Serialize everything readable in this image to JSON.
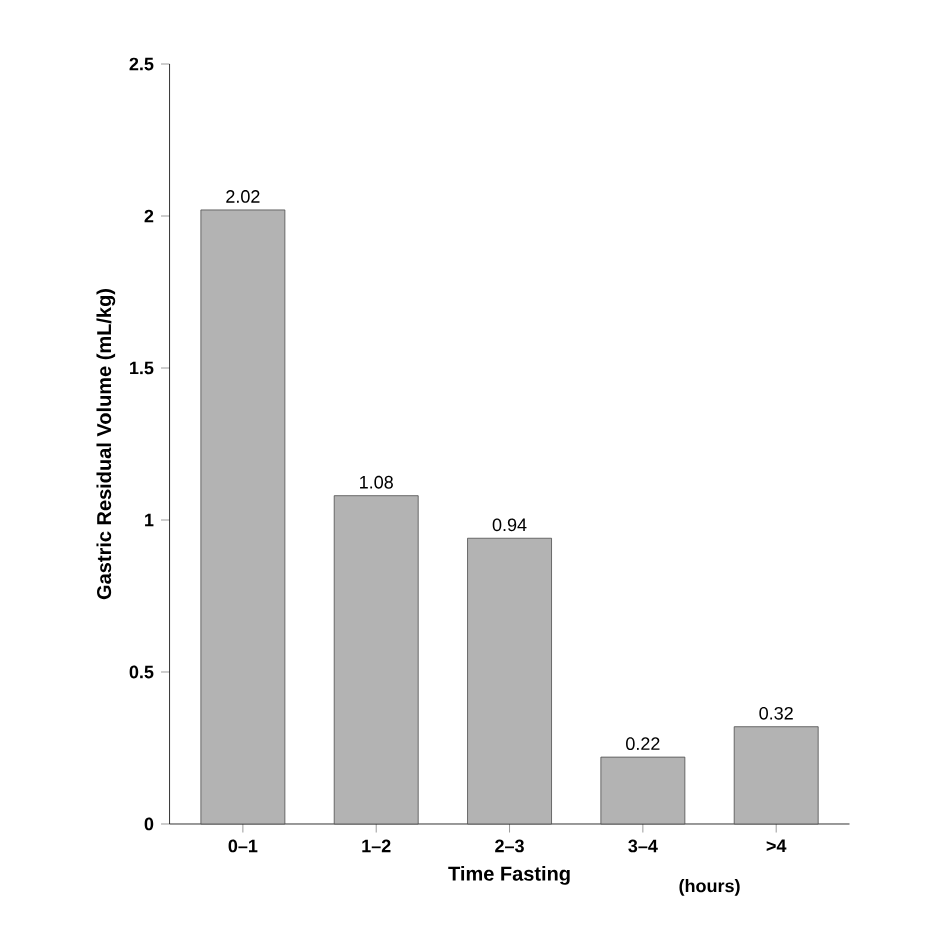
{
  "chart_data": {
    "type": "bar",
    "xlabel": "Time Fasting",
    "ylabel": "Gastric Residual Volume (mL/kg)",
    "categories": [
      "0–1",
      "1–2",
      "2–3",
      "3–4",
      ">4"
    ],
    "values": [
      2.02,
      1.08,
      0.94,
      0.22,
      0.32
    ],
    "color": "#b3b3b3",
    "ylim": [
      0,
      2.5
    ],
    "yticks": [
      0,
      0.5,
      1,
      1.5,
      2,
      2.5
    ],
    "data_labels": true,
    "grid": false,
    "annotations": [
      "(hours)"
    ]
  }
}
